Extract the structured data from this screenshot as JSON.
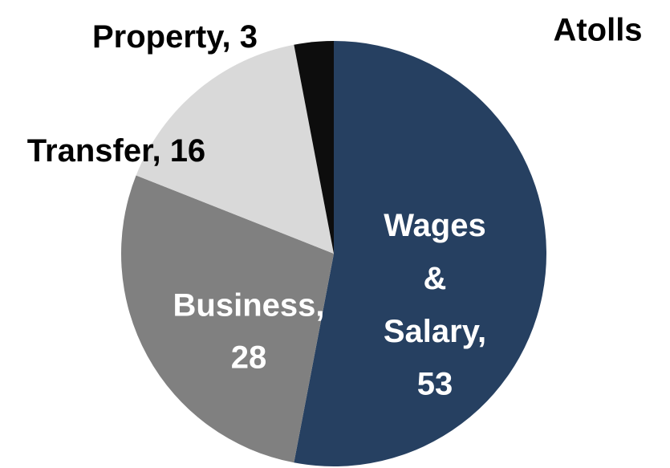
{
  "chart_data": {
    "type": "pie",
    "title": "Atolls",
    "categories": [
      "Wages & Salary",
      "Business",
      "Transfer",
      "Property"
    ],
    "values": [
      53,
      28,
      16,
      3
    ],
    "colors": [
      "#264061",
      "#808080",
      "#d9d9d9",
      "#0d0d0d"
    ],
    "label_colors": [
      "#ffffff",
      "#ffffff",
      "#000000",
      "#000000"
    ]
  }
}
